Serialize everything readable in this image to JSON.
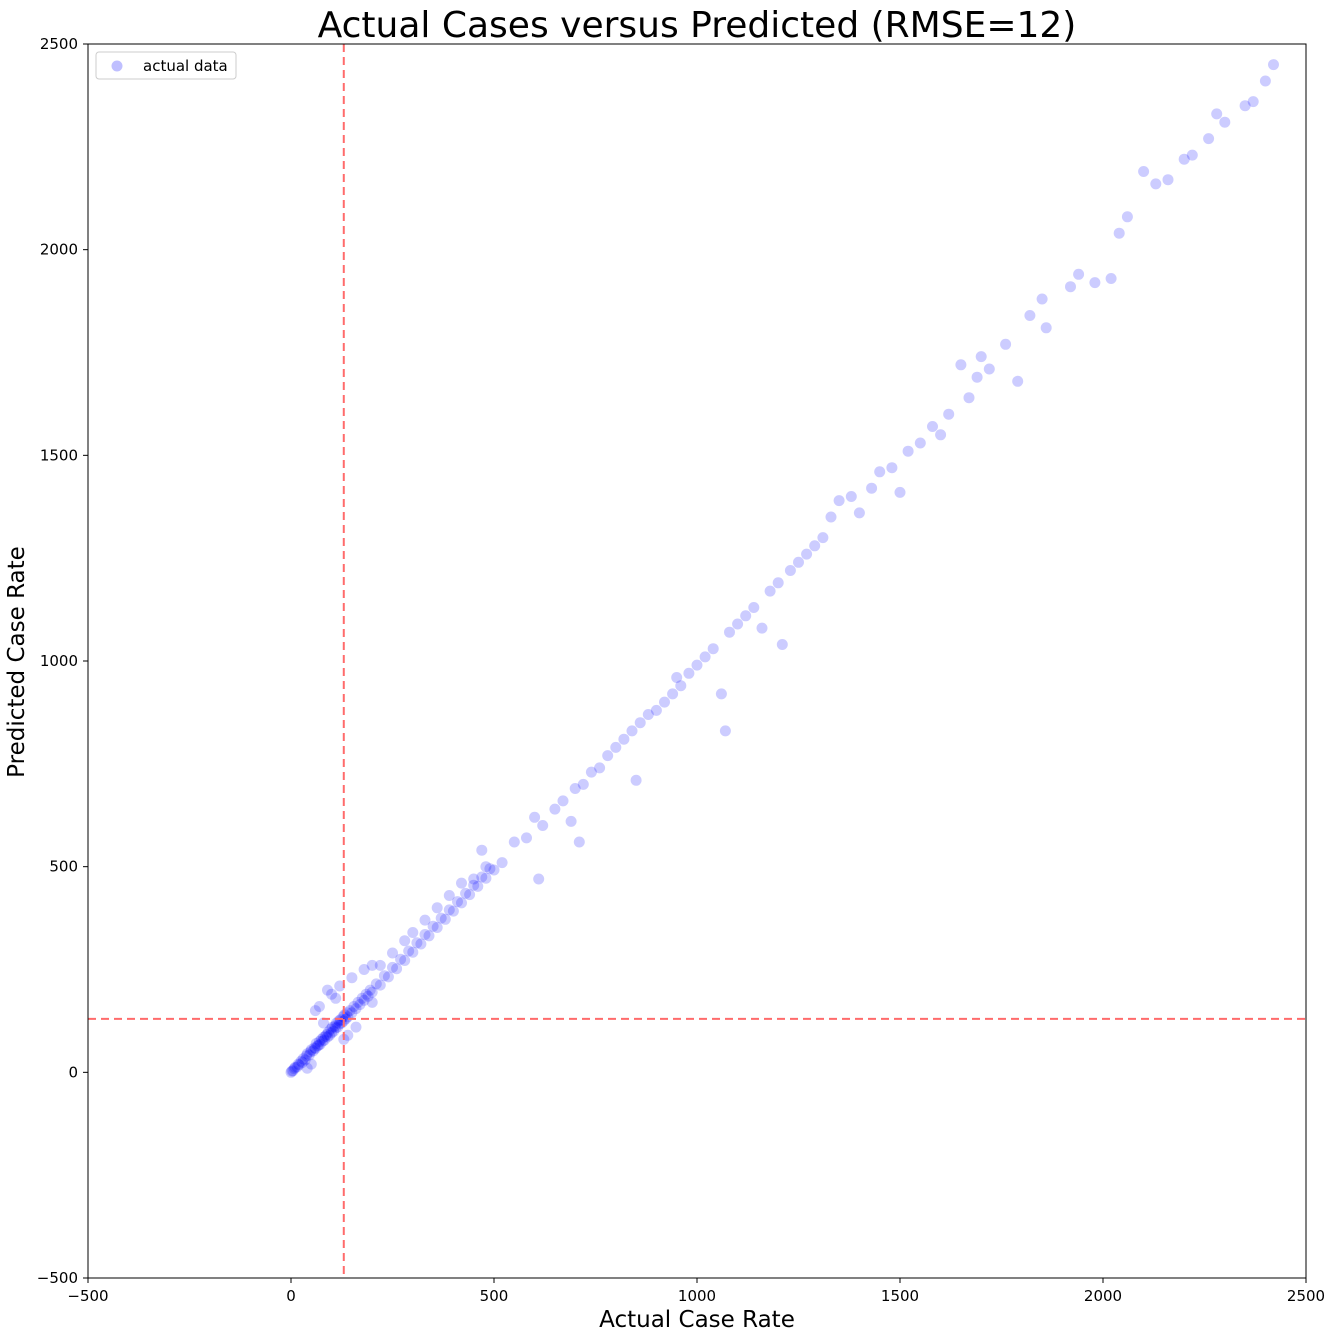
{
  "chart_data": {
    "type": "scatter",
    "title": "Actual Cases versus Predicted (RMSE=12)",
    "xlabel": "Actual Case Rate",
    "ylabel": "Predicted Case Rate",
    "xlim": [
      -500,
      2500
    ],
    "ylim": [
      -500,
      2500
    ],
    "xticks": [
      -500,
      0,
      500,
      1000,
      1500,
      2000,
      2500
    ],
    "yticks": [
      -500,
      0,
      500,
      1000,
      1500,
      2000,
      2500
    ],
    "tick_labels_x": [
      "−500",
      "0",
      "500",
      "1000",
      "1500",
      "2000",
      "2500"
    ],
    "tick_labels_y": [
      "−500",
      "0",
      "500",
      "1000",
      "1500",
      "2000",
      "2500"
    ],
    "grid": false,
    "legend": {
      "position": "top-left",
      "entries": [
        "actual data"
      ]
    },
    "marker_color": "#0000ff",
    "marker_alpha": 0.2,
    "reference_lines": {
      "color": "#ff6b6b",
      "style": "dashed",
      "vertical_x": 130,
      "horizontal_y": 130
    },
    "series": [
      {
        "name": "actual data",
        "points": [
          [
            0,
            0
          ],
          [
            2,
            3
          ],
          [
            5,
            4
          ],
          [
            8,
            9
          ],
          [
            10,
            12
          ],
          [
            15,
            13
          ],
          [
            18,
            20
          ],
          [
            20,
            18
          ],
          [
            25,
            27
          ],
          [
            28,
            24
          ],
          [
            30,
            33
          ],
          [
            35,
            30
          ],
          [
            38,
            40
          ],
          [
            40,
            45
          ],
          [
            45,
            42
          ],
          [
            48,
            50
          ],
          [
            50,
            55
          ],
          [
            55,
            52
          ],
          [
            58,
            60
          ],
          [
            60,
            58
          ],
          [
            62,
            70
          ],
          [
            65,
            64
          ],
          [
            68,
            66
          ],
          [
            70,
            75
          ],
          [
            72,
            68
          ],
          [
            75,
            80
          ],
          [
            78,
            76
          ],
          [
            80,
            85
          ],
          [
            82,
            78
          ],
          [
            85,
            88
          ],
          [
            88,
            92
          ],
          [
            90,
            86
          ],
          [
            92,
            98
          ],
          [
            95,
            90
          ],
          [
            98,
            105
          ],
          [
            100,
            96
          ],
          [
            102,
            110
          ],
          [
            105,
            100
          ],
          [
            108,
            112
          ],
          [
            110,
            108
          ],
          [
            112,
            120
          ],
          [
            115,
            110
          ],
          [
            118,
            125
          ],
          [
            120,
            118
          ],
          [
            122,
            128
          ],
          [
            125,
            120
          ],
          [
            128,
            135
          ],
          [
            130,
            125
          ],
          [
            132,
            140
          ],
          [
            135,
            130
          ],
          [
            138,
            145
          ],
          [
            140,
            135
          ],
          [
            145,
            150
          ],
          [
            150,
            145
          ],
          [
            155,
            160
          ],
          [
            160,
            155
          ],
          [
            165,
            170
          ],
          [
            170,
            165
          ],
          [
            175,
            180
          ],
          [
            180,
            175
          ],
          [
            185,
            190
          ],
          [
            190,
            185
          ],
          [
            195,
            200
          ],
          [
            200,
            195
          ],
          [
            210,
            215
          ],
          [
            220,
            212
          ],
          [
            230,
            235
          ],
          [
            240,
            232
          ],
          [
            250,
            255
          ],
          [
            260,
            252
          ],
          [
            270,
            275
          ],
          [
            280,
            272
          ],
          [
            290,
            295
          ],
          [
            300,
            292
          ],
          [
            310,
            315
          ],
          [
            320,
            312
          ],
          [
            330,
            335
          ],
          [
            340,
            332
          ],
          [
            350,
            355
          ],
          [
            360,
            352
          ],
          [
            370,
            375
          ],
          [
            380,
            372
          ],
          [
            390,
            395
          ],
          [
            400,
            392
          ],
          [
            410,
            415
          ],
          [
            420,
            412
          ],
          [
            430,
            435
          ],
          [
            440,
            432
          ],
          [
            450,
            455
          ],
          [
            460,
            452
          ],
          [
            470,
            475
          ],
          [
            480,
            472
          ],
          [
            490,
            495
          ],
          [
            500,
            492
          ],
          [
            60,
            150
          ],
          [
            70,
            160
          ],
          [
            90,
            200
          ],
          [
            100,
            190
          ],
          [
            110,
            180
          ],
          [
            120,
            210
          ],
          [
            80,
            120
          ],
          [
            150,
            230
          ],
          [
            180,
            250
          ],
          [
            200,
            260
          ],
          [
            130,
            80
          ],
          [
            140,
            90
          ],
          [
            160,
            110
          ],
          [
            50,
            20
          ],
          [
            40,
            10
          ],
          [
            200,
            170
          ],
          [
            220,
            260
          ],
          [
            250,
            290
          ],
          [
            280,
            320
          ],
          [
            300,
            340
          ],
          [
            330,
            370
          ],
          [
            360,
            400
          ],
          [
            390,
            430
          ],
          [
            420,
            460
          ],
          [
            450,
            470
          ],
          [
            470,
            540
          ],
          [
            480,
            500
          ],
          [
            520,
            510
          ],
          [
            550,
            560
          ],
          [
            580,
            570
          ],
          [
            600,
            620
          ],
          [
            610,
            470
          ],
          [
            620,
            600
          ],
          [
            650,
            640
          ],
          [
            670,
            660
          ],
          [
            690,
            610
          ],
          [
            700,
            690
          ],
          [
            710,
            560
          ],
          [
            720,
            700
          ],
          [
            740,
            730
          ],
          [
            760,
            740
          ],
          [
            780,
            770
          ],
          [
            800,
            790
          ],
          [
            820,
            810
          ],
          [
            840,
            830
          ],
          [
            850,
            710
          ],
          [
            860,
            850
          ],
          [
            880,
            870
          ],
          [
            900,
            880
          ],
          [
            920,
            900
          ],
          [
            940,
            920
          ],
          [
            950,
            960
          ],
          [
            960,
            940
          ],
          [
            980,
            970
          ],
          [
            1000,
            990
          ],
          [
            1020,
            1010
          ],
          [
            1040,
            1030
          ],
          [
            1060,
            920
          ],
          [
            1070,
            830
          ],
          [
            1080,
            1070
          ],
          [
            1100,
            1090
          ],
          [
            1120,
            1110
          ],
          [
            1140,
            1130
          ],
          [
            1160,
            1080
          ],
          [
            1180,
            1170
          ],
          [
            1200,
            1190
          ],
          [
            1210,
            1040
          ],
          [
            1230,
            1220
          ],
          [
            1250,
            1240
          ],
          [
            1270,
            1260
          ],
          [
            1290,
            1280
          ],
          [
            1310,
            1300
          ],
          [
            1330,
            1350
          ],
          [
            1350,
            1390
          ],
          [
            1380,
            1400
          ],
          [
            1400,
            1360
          ],
          [
            1430,
            1420
          ],
          [
            1450,
            1460
          ],
          [
            1480,
            1470
          ],
          [
            1500,
            1410
          ],
          [
            1520,
            1510
          ],
          [
            1550,
            1530
          ],
          [
            1580,
            1570
          ],
          [
            1600,
            1550
          ],
          [
            1620,
            1600
          ],
          [
            1650,
            1720
          ],
          [
            1670,
            1640
          ],
          [
            1690,
            1690
          ],
          [
            1700,
            1740
          ],
          [
            1720,
            1710
          ],
          [
            1760,
            1770
          ],
          [
            1790,
            1680
          ],
          [
            1820,
            1840
          ],
          [
            1850,
            1880
          ],
          [
            1860,
            1810
          ],
          [
            1920,
            1910
          ],
          [
            1940,
            1940
          ],
          [
            1980,
            1920
          ],
          [
            2020,
            1930
          ],
          [
            2040,
            2040
          ],
          [
            2060,
            2080
          ],
          [
            2100,
            2190
          ],
          [
            2130,
            2160
          ],
          [
            2160,
            2170
          ],
          [
            2200,
            2220
          ],
          [
            2220,
            2230
          ],
          [
            2260,
            2270
          ],
          [
            2280,
            2330
          ],
          [
            2300,
            2310
          ],
          [
            2350,
            2350
          ],
          [
            2370,
            2360
          ],
          [
            2400,
            2410
          ],
          [
            2420,
            2450
          ]
        ]
      }
    ]
  }
}
